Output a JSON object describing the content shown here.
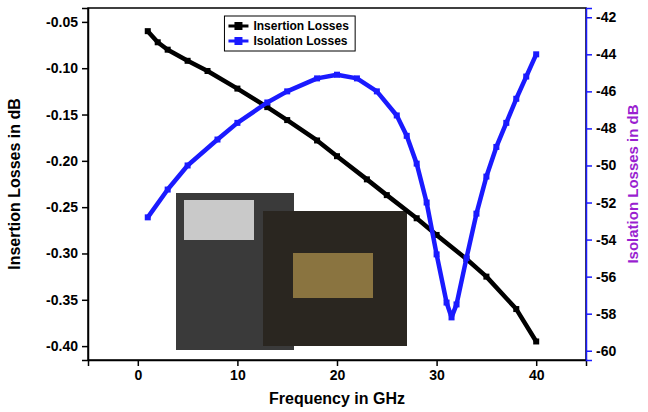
{
  "chart_data": {
    "type": "line",
    "xlabel": "Frequency in GHz",
    "ylabel": "Insertion Losses in dB",
    "y2label": "Isolation Losses in dB",
    "xlim": [
      -5,
      45
    ],
    "xticks": [
      0,
      10,
      20,
      30,
      40
    ],
    "ylim": [
      -0.415,
      -0.035
    ],
    "yticks": [
      -0.05,
      {
        "value": -0.1,
        "label": "-0.10"
      },
      -0.15,
      {
        "value": -0.2,
        "label": "-0.20"
      },
      -0.25,
      {
        "value": -0.3,
        "label": "-0.30"
      },
      -0.35,
      {
        "value": -0.4,
        "label": "-0.40"
      }
    ],
    "y2lim": [
      -60.5,
      -41.5
    ],
    "y2ticks": [
      -60,
      -58,
      -56,
      -54,
      -52,
      -50,
      -48,
      -46,
      -44,
      -42
    ],
    "grid": false,
    "legend": "top",
    "series": [
      {
        "name": "Insertion Losses",
        "color": "#000000",
        "marker": "square",
        "line_style": "solid",
        "x": [
          1,
          2,
          3,
          5,
          7,
          10,
          13,
          15,
          18,
          20,
          23,
          25,
          28,
          30,
          33,
          35,
          38,
          40
        ],
        "values": [
          -0.06,
          -0.072,
          -0.08,
          -0.092,
          -0.103,
          -0.122,
          -0.142,
          -0.156,
          -0.178,
          -0.195,
          -0.22,
          -0.237,
          -0.262,
          -0.28,
          -0.306,
          -0.325,
          -0.36,
          -0.395
        ]
      },
      {
        "name": "Isolation Losses",
        "color": "#1a1aff",
        "marker": "square",
        "line_style": "solid",
        "axis": "y2",
        "x": [
          1,
          3,
          5,
          8,
          10,
          13,
          15,
          18,
          20,
          22,
          24,
          26,
          27,
          28,
          29,
          30,
          31,
          31.5,
          32,
          33,
          34,
          35,
          36,
          37,
          38,
          39,
          40
        ],
        "values": [
          -52.8,
          -51.3,
          -50.0,
          -48.6,
          -47.7,
          -46.6,
          -46.0,
          -45.3,
          -45.1,
          -45.3,
          -46.0,
          -47.3,
          -48.4,
          -49.9,
          -52.0,
          -54.8,
          -57.4,
          -58.2,
          -57.5,
          -55.0,
          -52.6,
          -50.6,
          -49.0,
          -47.7,
          -46.4,
          -45.2,
          -44.0
        ]
      }
    ]
  }
}
